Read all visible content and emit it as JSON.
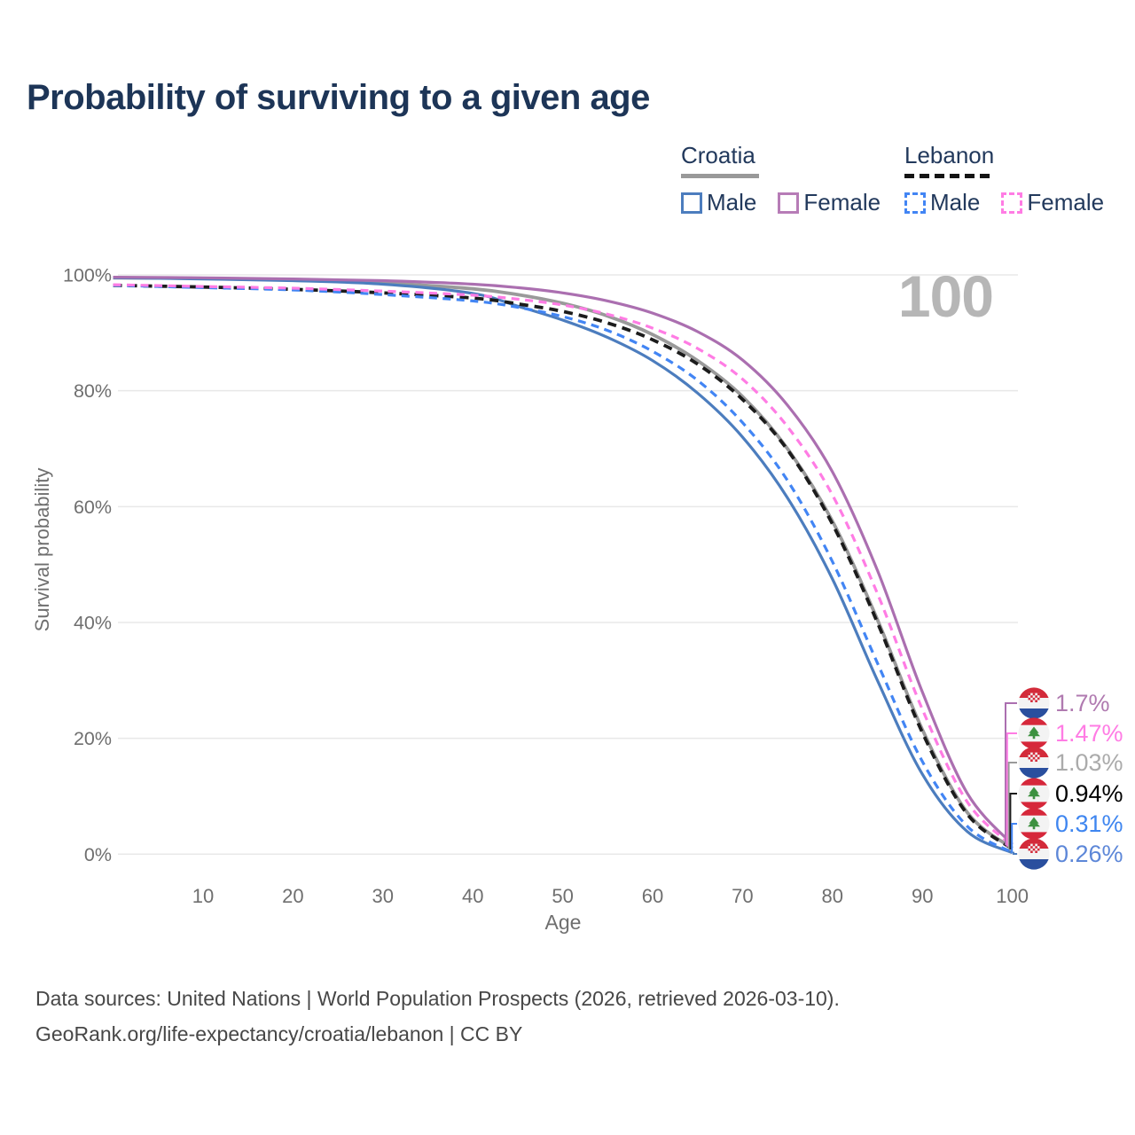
{
  "title": "Probability of surviving to a given age",
  "watermark_age": "100",
  "legend": {
    "groups": [
      {
        "country": "Croatia",
        "line_style": "solid",
        "underline_color": "#999999",
        "items": [
          {
            "label": "Male",
            "color": "#4c7dbe",
            "dashed": false
          },
          {
            "label": "Female",
            "color": "#b77cb7",
            "dashed": false
          }
        ]
      },
      {
        "country": "Lebanon",
        "line_style": "dashed",
        "underline_color": "#141414",
        "items": [
          {
            "label": "Male",
            "color": "#4285f4",
            "dashed": true
          },
          {
            "label": "Female",
            "color": "#ff7ce4",
            "dashed": true
          }
        ]
      }
    ]
  },
  "chart_data": {
    "type": "line",
    "title": "Probability of surviving to a given age",
    "xlabel": "Age",
    "ylabel": "Survival probability",
    "xlim": [
      0,
      100
    ],
    "ylim": [
      0,
      100
    ],
    "x_ticks": [
      10,
      20,
      30,
      40,
      50,
      60,
      70,
      80,
      90,
      100
    ],
    "y_ticks": [
      "0%",
      "20%",
      "40%",
      "60%",
      "80%",
      "100%"
    ],
    "grid": "horizontal",
    "legend_position": "top-right",
    "ages": [
      0,
      10,
      20,
      30,
      40,
      45,
      50,
      55,
      60,
      65,
      70,
      75,
      80,
      85,
      90,
      95,
      100
    ],
    "series": [
      {
        "id": "croatia_total",
        "name": "Croatia",
        "country": "croatia",
        "group": "total",
        "color": "#9a9a9a",
        "label_color": "#ababab",
        "dash": null,
        "width": 3.8,
        "values": [
          99.5,
          99.4,
          99.1,
          98.6,
          97.6,
          96.6,
          95.1,
          92.9,
          89.7,
          85.2,
          79.0,
          70.0,
          57.5,
          40.5,
          21.5,
          7.2,
          1.03
        ],
        "end_label": "1.03%",
        "end_value": 1.03
      },
      {
        "id": "croatia_male",
        "name": "Croatia Male",
        "country": "croatia",
        "group": "male",
        "color": "#4c7dbe",
        "label_color": "#5d87d8",
        "dash": null,
        "width": 3.2,
        "values": [
          99.5,
          99.3,
          99.0,
          98.4,
          96.8,
          94.6,
          92.2,
          89.2,
          85.2,
          79.6,
          72.0,
          61.5,
          47.5,
          30.0,
          13.8,
          3.9,
          0.26
        ],
        "end_label": "0.26%",
        "end_value": 0.26
      },
      {
        "id": "croatia_female",
        "name": "Croatia Female",
        "country": "croatia",
        "group": "female",
        "color": "#ab6fb0",
        "label_color": "#b07ab0",
        "dash": null,
        "width": 3.2,
        "values": [
          99.6,
          99.5,
          99.3,
          99.0,
          98.4,
          97.8,
          96.9,
          95.5,
          93.4,
          90.2,
          85.3,
          77.5,
          66.0,
          49.0,
          28.0,
          10.5,
          1.7
        ],
        "end_label": "1.7%",
        "end_value": 1.7
      },
      {
        "id": "lebanon_total",
        "name": "Lebanon",
        "country": "lebanon",
        "group": "total",
        "color": "#1c1c1c",
        "label_color": "#000000",
        "dash": "10 7",
        "width": 3.8,
        "values": [
          98.2,
          97.9,
          97.5,
          96.9,
          96.0,
          95.0,
          93.7,
          91.7,
          88.8,
          84.6,
          78.5,
          69.8,
          57.0,
          40.0,
          21.0,
          6.9,
          0.94
        ],
        "end_label": "0.94%",
        "end_value": 0.94
      },
      {
        "id": "lebanon_male",
        "name": "Lebanon Male",
        "country": "lebanon",
        "group": "male",
        "color": "#4285f4",
        "label_color": "#3f86f0",
        "dash": "9 6.5",
        "width": 3.2,
        "values": [
          98.2,
          97.8,
          97.4,
          96.6,
          95.5,
          94.4,
          92.8,
          90.4,
          86.8,
          81.8,
          74.5,
          64.5,
          50.5,
          33.0,
          16.0,
          4.8,
          0.31
        ],
        "end_label": "0.31%",
        "end_value": 0.31
      },
      {
        "id": "lebanon_female",
        "name": "Lebanon Female",
        "country": "lebanon",
        "group": "female",
        "color": "#ff7ce4",
        "label_color": "#ff7ce4",
        "dash": "9 6.5",
        "width": 3.2,
        "values": [
          98.3,
          98.0,
          97.7,
          97.2,
          96.5,
          95.8,
          94.8,
          93.2,
          90.8,
          87.3,
          82.0,
          73.8,
          62.0,
          45.0,
          25.0,
          9.0,
          1.47
        ],
        "end_label": "1.47%",
        "end_value": 1.47
      }
    ]
  },
  "footer": {
    "line1": "Data sources: United Nations | World Population Prospects (2026, retrieved 2026-03-10).",
    "line2": "GeoRank.org/life-expectancy/croatia/lebanon | CC BY"
  }
}
